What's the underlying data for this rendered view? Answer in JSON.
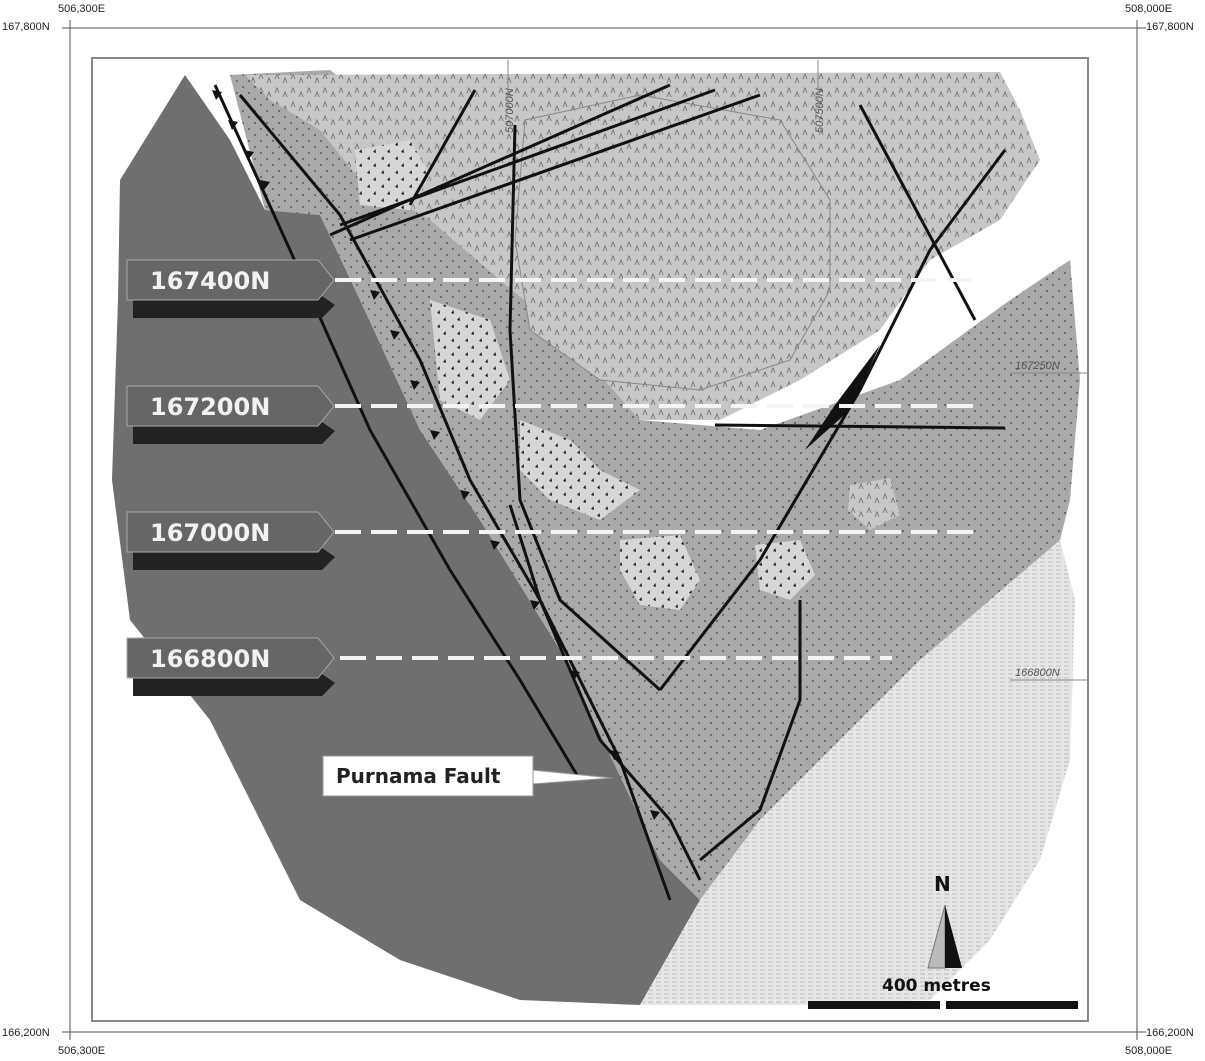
{
  "frame": {
    "top_left_e": "506,300E",
    "top_left_n": "167,800N",
    "top_right_e": "508,000E",
    "top_right_n": "167,800N",
    "bottom_left_e": "506,300E",
    "bottom_left_n": "166,200N",
    "bottom_right_e": "508,000E",
    "bottom_right_n": "166,200N"
  },
  "sections": [
    {
      "label": "167400N"
    },
    {
      "label": "167200N"
    },
    {
      "label": "167000N"
    },
    {
      "label": "166800N"
    }
  ],
  "grid_labels": {
    "e507000": "507000N",
    "e507500": "507500N",
    "n167250": "167250N",
    "n166800": "166800N"
  },
  "fault_label": "Purnama Fault",
  "north_label": "N",
  "scale_label": "400 metres",
  "colors": {
    "host_dark": "#6f6f6f",
    "tuff": "#a9a9a9",
    "light_volcanic": "#c9c9c9",
    "breccia": "#d8d8d8",
    "sediment": "#e6e6e6",
    "label_box": "#666666"
  }
}
